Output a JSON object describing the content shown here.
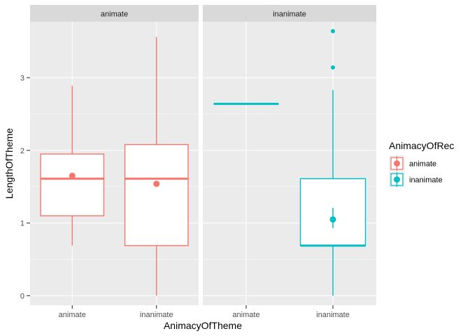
{
  "chart_data": {
    "type": "boxplot",
    "xlabel": "AnimacyOfTheme",
    "ylabel": "LengthOfTheme",
    "facet_variable": "AnimacyOfRec",
    "facets": [
      "animate",
      "inanimate"
    ],
    "categories": [
      "animate",
      "inanimate"
    ],
    "y_ticks": [
      0,
      1,
      2,
      3
    ],
    "ylim": [
      -0.13,
      3.77
    ],
    "grid": true,
    "legend": {
      "title": "AnimacyOfRec",
      "position": "right",
      "entries": [
        {
          "label": "animate",
          "color": "#F8766D"
        },
        {
          "label": "inanimate",
          "color": "#00BFC4"
        }
      ]
    },
    "colors": {
      "animate": "#F8766D",
      "inanimate": "#00BFC4"
    },
    "boxes": [
      {
        "facet": "animate",
        "x": "animate",
        "min": 0.69,
        "q1": 1.1,
        "median": 1.61,
        "q3": 1.95,
        "max": 2.89,
        "outliers": [],
        "mean": 1.65,
        "mean_lo": 1.65,
        "mean_hi": 1.65
      },
      {
        "facet": "animate",
        "x": "inanimate",
        "min": 0.0,
        "q1": 0.69,
        "median": 1.61,
        "q3": 2.08,
        "max": 3.56,
        "outliers": [],
        "mean": 1.54,
        "mean_lo": 1.54,
        "mean_hi": 1.54
      },
      {
        "facet": "inanimate",
        "x": "animate",
        "min": 2.64,
        "q1": 2.64,
        "median": 2.64,
        "q3": 2.64,
        "max": 2.64,
        "outliers": [],
        "mean": null,
        "mean_lo": null,
        "mean_hi": null
      },
      {
        "facet": "inanimate",
        "x": "inanimate",
        "min": 0.0,
        "q1": 0.69,
        "median": 0.69,
        "q3": 1.61,
        "max": 2.83,
        "outliers": [
          3.14,
          3.64
        ],
        "mean": 1.05,
        "mean_lo": 0.93,
        "mean_hi": 1.21
      }
    ]
  }
}
